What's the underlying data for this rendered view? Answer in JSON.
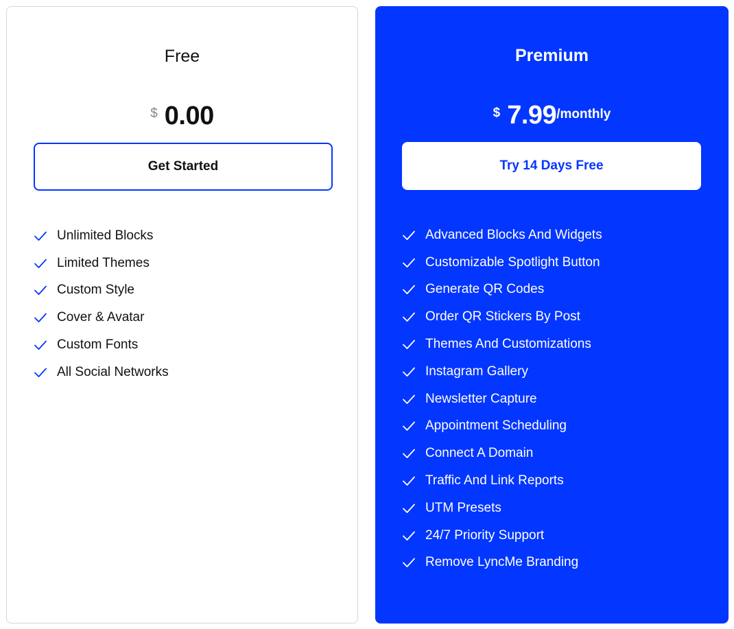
{
  "plans": [
    {
      "name": "Free",
      "currency": "$",
      "price": "0.00",
      "period": "",
      "button_label": "Get Started",
      "features": [
        "Unlimited Blocks",
        "Limited Themes",
        "Custom Style",
        "Cover & Avatar",
        "Custom Fonts",
        "All Social Networks"
      ]
    },
    {
      "name": "Premium",
      "currency": "$",
      "price": "7.99",
      "period": "/monthly",
      "button_label": "Try 14 Days Free",
      "features": [
        "Advanced Blocks And Widgets",
        "Customizable Spotlight Button",
        "Generate QR Codes",
        "Order QR Stickers By Post",
        "Themes And Customizations",
        "Instagram Gallery",
        "Newsletter Capture",
        "Appointment Scheduling",
        "Connect A Domain",
        "Traffic And Link Reports",
        "UTM Presets",
        "24/7 Priority Support",
        "Remove LyncMe Branding"
      ]
    }
  ],
  "colors": {
    "accent": "#0336FF",
    "icon": "check-icon"
  }
}
